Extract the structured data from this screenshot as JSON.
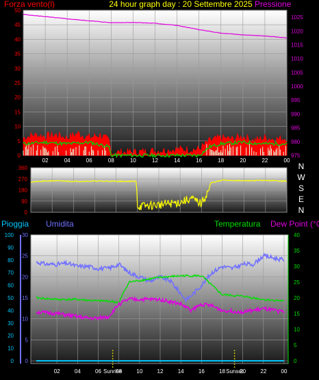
{
  "chart_data": [
    {
      "type": "line",
      "title": "24 hour graph day : 20 Settembre 2025",
      "ylabel_left": "Forza vento(l)",
      "ylabel_right": "Pressione",
      "x_ticks": [
        "02",
        "04",
        "06",
        "08",
        "10",
        "12",
        "14",
        "16",
        "18",
        "20",
        "22",
        "00"
      ],
      "y_left_ticks": [
        "0",
        "5",
        "10",
        "15",
        "20",
        "25",
        "30",
        "35",
        "40",
        "45",
        "50"
      ],
      "y_right_ticks": [
        "975",
        "980",
        "985",
        "990",
        "995",
        "1000",
        "1005",
        "1010",
        "1015",
        "1020",
        "1025"
      ],
      "ylim_left": [
        0,
        50
      ],
      "ylim_right": [
        975,
        1027.5
      ],
      "colors": {
        "wind_gust": "#ff0000",
        "wind_avg": "#00d000",
        "wind_dir_bars": "#e0ffe0",
        "pressure": "#e000e0",
        "left_axis": "#ff0000",
        "right_axis": "#e000e0"
      },
      "series": [
        {
          "key": "pressure",
          "x": [
            0,
            2,
            4,
            6,
            8,
            10,
            12,
            14,
            16,
            18,
            20,
            22,
            24
          ],
          "values": [
            1026,
            1025.2,
            1024.4,
            1023.7,
            1023,
            1023.1,
            1022.8,
            1022,
            1020.5,
            1019.2,
            1018.6,
            1018.2,
            1017.5
          ]
        },
        {
          "key": "wind_gust",
          "x": [
            0,
            1,
            2,
            3,
            4,
            5,
            6,
            7,
            7.8,
            8,
            10,
            12,
            14,
            16,
            17,
            18,
            19,
            20,
            21,
            22,
            23,
            24
          ],
          "values": [
            6,
            7,
            6.5,
            7,
            6,
            7.5,
            6,
            7,
            5,
            1,
            1,
            1.5,
            2,
            2,
            5,
            6,
            5.5,
            6.5,
            5,
            6,
            5.5,
            6
          ]
        },
        {
          "key": "wind_avg",
          "x": [
            0,
            2,
            4,
            6,
            7.8,
            8,
            16,
            17,
            18,
            20,
            22,
            24
          ],
          "values": [
            4,
            4.5,
            4,
            4.5,
            3,
            0,
            0,
            3,
            4,
            4.5,
            4,
            4
          ]
        }
      ]
    },
    {
      "type": "line",
      "y_ticks": [
        "360",
        "270",
        "180",
        "90",
        "0"
      ],
      "compass_labels": [
        "N",
        "W",
        "S",
        "E",
        "N"
      ],
      "ylim": [
        0,
        360
      ],
      "colors": {
        "direction": "#ffff00"
      },
      "series": [
        {
          "key": "wind_direction",
          "x": [
            0,
            2,
            4,
            6,
            7.8,
            8,
            9.9,
            10,
            12,
            14,
            15,
            16,
            16.5,
            17,
            18,
            20,
            22,
            24
          ],
          "values": [
            245,
            255,
            250,
            252,
            250,
            250,
            250,
            45,
            60,
            80,
            110,
            70,
            150,
            240,
            260,
            255,
            258,
            252
          ]
        }
      ]
    },
    {
      "type": "line",
      "legend": [
        "Pioggia",
        "Umidita",
        "Temperatura",
        "Dew Point (°C)"
      ],
      "x_ticks": [
        "02",
        "04",
        "06",
        "08",
        "10",
        "12",
        "14",
        "16",
        "18",
        "20",
        "22",
        "00"
      ],
      "sun_labels": [
        "Sunrise",
        "Sunset"
      ],
      "y_rain_ticks": [
        "0",
        "10",
        "20",
        "30",
        "40",
        "50",
        "60",
        "70",
        "80",
        "90",
        "100"
      ],
      "y_humidity_ticks": [
        "0",
        "5",
        "10",
        "15",
        "20",
        "25",
        "30"
      ],
      "y_temp_ticks": [
        "0",
        "5",
        "10",
        "15",
        "20",
        "25",
        "30",
        "35",
        "40"
      ],
      "ylim_humidity": [
        0,
        30
      ],
      "ylim_temp": [
        0,
        40
      ],
      "ylim_rain": [
        0,
        100
      ],
      "colors": {
        "rain": "#00c8ff",
        "humidity": "#7070ff",
        "temperature": "#00e000",
        "dew_point": "#e000e0",
        "sun": "#cccc00"
      },
      "series": [
        {
          "key": "humidity",
          "x": [
            0,
            1,
            2,
            3,
            4,
            5,
            6,
            7,
            8,
            9,
            10,
            11,
            12,
            13,
            14,
            14.5,
            15,
            16,
            17,
            18,
            19,
            20,
            21,
            22,
            23,
            24
          ],
          "values": [
            23.5,
            23,
            23,
            23.2,
            22.5,
            22.5,
            22,
            22,
            23,
            21,
            20,
            19,
            20,
            19,
            16,
            14.5,
            15.5,
            18,
            21,
            22.5,
            22,
            23,
            23,
            25,
            24.5,
            24
          ]
        },
        {
          "key": "temperature",
          "x": [
            0,
            2,
            4,
            6,
            7,
            8,
            8.5,
            9,
            10,
            12,
            14,
            16,
            17,
            18,
            20,
            22,
            24
          ],
          "values": [
            20,
            19.5,
            19.5,
            19,
            19,
            18.5,
            22,
            25,
            25.5,
            26.5,
            27,
            27,
            24,
            21,
            20.5,
            19.5,
            19
          ]
        },
        {
          "key": "dew_point",
          "x": [
            0,
            2,
            4,
            5,
            6,
            7,
            8,
            9,
            10,
            12,
            14,
            15,
            16,
            17,
            18,
            20,
            22,
            24
          ],
          "values": [
            15.5,
            15,
            14,
            13.5,
            13.5,
            14,
            18,
            19.5,
            19.5,
            19.5,
            18,
            16,
            18,
            17.5,
            16,
            15.5,
            16.5,
            15.5
          ]
        },
        {
          "key": "rain",
          "x": [
            0,
            24
          ],
          "values": [
            0,
            0
          ]
        }
      ],
      "sun_times": [
        7.4,
        19.2
      ]
    }
  ]
}
